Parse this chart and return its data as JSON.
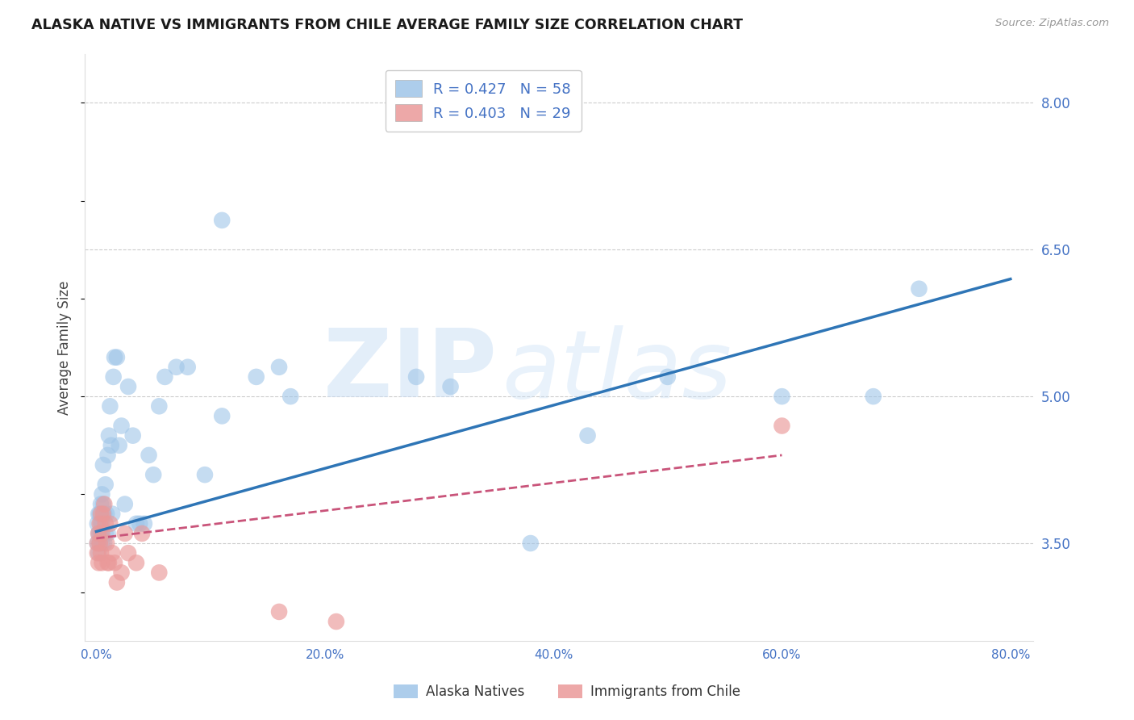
{
  "title": "ALASKA NATIVE VS IMMIGRANTS FROM CHILE AVERAGE FAMILY SIZE CORRELATION CHART",
  "source": "Source: ZipAtlas.com",
  "ylabel": "Average Family Size",
  "xlim": [
    -0.01,
    0.82
  ],
  "ylim": [
    2.5,
    8.5
  ],
  "yticks": [
    3.5,
    5.0,
    6.5,
    8.0
  ],
  "xtick_labels": [
    "0.0%",
    "20.0%",
    "40.0%",
    "60.0%",
    "80.0%"
  ],
  "xtick_positions": [
    0.0,
    0.2,
    0.4,
    0.6,
    0.8
  ],
  "legend_r1": "R = 0.427   N = 58",
  "legend_r2": "R = 0.403   N = 29",
  "blue_color": "#9fc5e8",
  "pink_color": "#ea9999",
  "line_blue": "#2e75b6",
  "line_pink": "#c9547a",
  "bg_color": "#ffffff",
  "grid_color": "#cccccc",
  "axis_color": "#4472c4",
  "watermark": "ZIPatlas",
  "blue_x": [
    0.001,
    0.001,
    0.002,
    0.002,
    0.002,
    0.003,
    0.003,
    0.003,
    0.004,
    0.004,
    0.004,
    0.005,
    0.005,
    0.005,
    0.006,
    0.006,
    0.007,
    0.007,
    0.008,
    0.008,
    0.009,
    0.01,
    0.01,
    0.011,
    0.012,
    0.013,
    0.014,
    0.015,
    0.016,
    0.018,
    0.02,
    0.022,
    0.025,
    0.028,
    0.032,
    0.035,
    0.038,
    0.042,
    0.046,
    0.05,
    0.055,
    0.06,
    0.07,
    0.08,
    0.095,
    0.11,
    0.14,
    0.17,
    0.11,
    0.16,
    0.28,
    0.31,
    0.38,
    0.43,
    0.5,
    0.6,
    0.68,
    0.72
  ],
  "blue_y": [
    3.5,
    3.7,
    3.6,
    3.8,
    3.4,
    3.6,
    3.8,
    3.5,
    3.7,
    3.9,
    3.6,
    4.0,
    3.7,
    3.5,
    3.9,
    4.3,
    3.5,
    3.8,
    3.6,
    4.1,
    3.8,
    4.4,
    3.6,
    4.6,
    4.9,
    4.5,
    3.8,
    5.2,
    5.4,
    5.4,
    4.5,
    4.7,
    3.9,
    5.1,
    4.6,
    3.7,
    3.7,
    3.7,
    4.4,
    4.2,
    4.9,
    5.2,
    5.3,
    5.3,
    4.2,
    4.8,
    5.2,
    5.0,
    6.8,
    5.3,
    5.2,
    5.1,
    3.5,
    4.6,
    5.2,
    5.0,
    5.0,
    6.1
  ],
  "pink_x": [
    0.001,
    0.001,
    0.002,
    0.002,
    0.003,
    0.003,
    0.004,
    0.004,
    0.005,
    0.005,
    0.006,
    0.007,
    0.008,
    0.009,
    0.01,
    0.011,
    0.012,
    0.014,
    0.016,
    0.018,
    0.022,
    0.025,
    0.028,
    0.035,
    0.04,
    0.055,
    0.16,
    0.21,
    0.6
  ],
  "pink_y": [
    3.5,
    3.4,
    3.6,
    3.3,
    3.7,
    3.5,
    3.8,
    3.4,
    3.6,
    3.3,
    3.8,
    3.9,
    3.7,
    3.5,
    3.3,
    3.3,
    3.7,
    3.4,
    3.3,
    3.1,
    3.2,
    3.6,
    3.4,
    3.3,
    3.6,
    3.2,
    2.8,
    2.7,
    4.7
  ],
  "blue_line_x": [
    0.0,
    0.8
  ],
  "blue_line_y": [
    3.62,
    6.2
  ],
  "pink_line_x": [
    0.0,
    0.6
  ],
  "pink_line_y": [
    3.55,
    4.4
  ]
}
